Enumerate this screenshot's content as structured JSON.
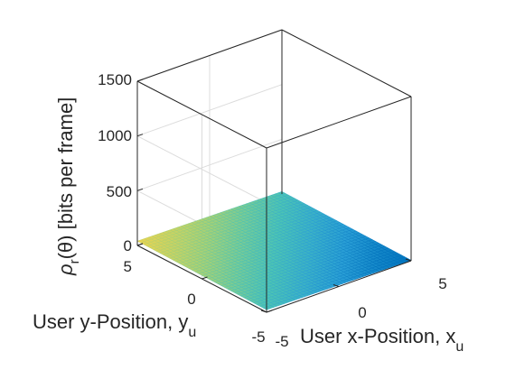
{
  "chart_data": {
    "type": "surface",
    "xlabel": "User x-Position, x",
    "xlabel_sub": "u",
    "ylabel": "User y-Position, y",
    "ylabel_sub": "u",
    "zlabel_symbol": "ρ",
    "zlabel_sub": "r",
    "zlabel_rest": "(θ) [bits per frame]",
    "xlim": [
      -5,
      5
    ],
    "ylim": [
      -5,
      5
    ],
    "zlim": [
      0,
      1500
    ],
    "xticks": [
      "-5",
      "0",
      "5"
    ],
    "yticks": [
      "-5",
      "0",
      "5"
    ],
    "zticks": [
      "0",
      "500",
      "1000",
      "1500"
    ],
    "grid": true,
    "colormap": [
      "#0072bd",
      "#2a9fd6",
      "#4cc4b4",
      "#a6d175",
      "#ecd34f"
    ],
    "surface_z_range": [
      5,
      40
    ],
    "surface_trend": "z increases from corner (x=5, y=-5) to corner (x=-5, y=5)"
  }
}
